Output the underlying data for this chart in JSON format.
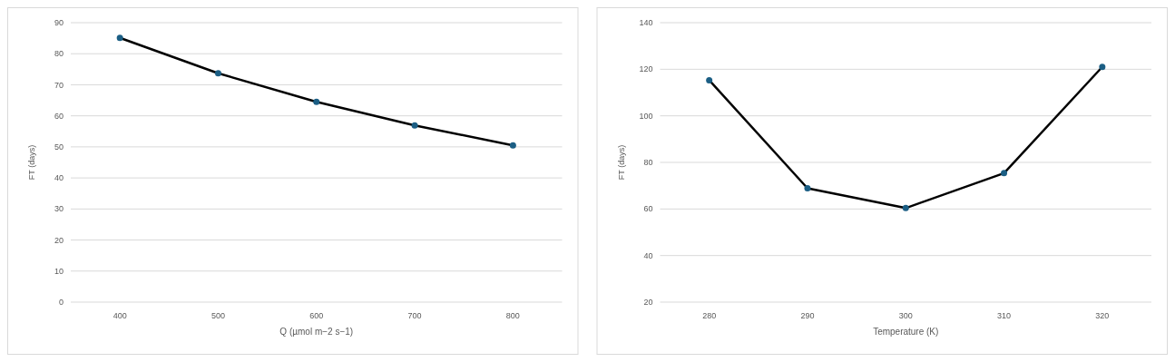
{
  "chart_data": [
    {
      "type": "line",
      "xlabel": "Q (µmol m−2 s−1)",
      "ylabel": "FT (days)",
      "categories": [
        "400",
        "500",
        "600",
        "700",
        "800"
      ],
      "series": [
        {
          "color": "#000000",
          "colors": [
            "#1b5e84",
            "#1b5e84",
            "#1b5e84",
            "#1b5e84",
            "#1b5e84"
          ],
          "values": [
            85.1,
            73.7,
            64.5,
            56.9,
            50.5
          ]
        }
      ],
      "ylim": [
        0,
        90
      ],
      "yticks": [
        0,
        10,
        20,
        30,
        40,
        50,
        60,
        70,
        80,
        90
      ],
      "grid": "y",
      "marker": "circle",
      "line_style": "solid"
    },
    {
      "type": "line",
      "xlabel": "Temperature (K)",
      "ylabel": "FT (days)",
      "categories": [
        "280",
        "290",
        "300",
        "310",
        "320"
      ],
      "series": [
        {
          "color": "#000000",
          "colors": [
            "#1b5e84",
            "#1b5e84",
            "#1b5e84",
            "#1b5e84",
            "#1b5e84"
          ],
          "values": [
            115.3,
            68.9,
            60.4,
            75.4,
            121.0
          ]
        }
      ],
      "ylim": [
        20,
        140
      ],
      "yticks": [
        20,
        40,
        60,
        80,
        100,
        120,
        140
      ],
      "grid": "y",
      "marker": "circle",
      "line_style": "solid"
    }
  ]
}
